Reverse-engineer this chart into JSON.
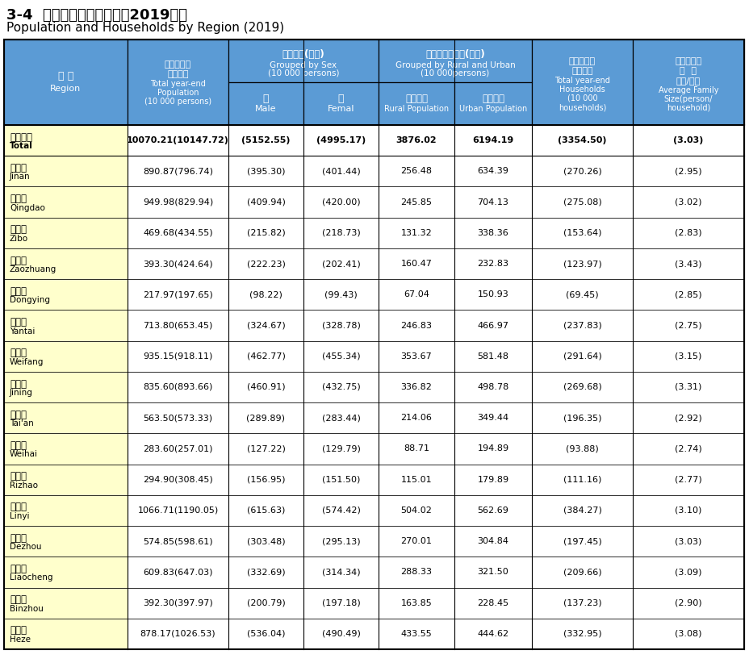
{
  "title_cn": "3-4  各市人口数和总户数（2019年）",
  "title_en": "Population and Households by Region (2019)",
  "header_bg": "#5B9BD5",
  "header_text_color": "#FFFFFF",
  "first_col_bg": "#FFFFCC",
  "data_bg": "#FFFFFF",
  "border_color": "#000000",
  "rows": [
    {
      "cn": "全省总计",
      "en": "Total",
      "total": "10070.21(10147.72)",
      "male": "(5152.55)",
      "female": "(4995.17)",
      "rural": "3876.02",
      "urban": "6194.19",
      "households": "(3354.50)",
      "avg": "(3.03)",
      "bold": true
    },
    {
      "cn": "济南市",
      "en": "Jinan",
      "total": "890.87(796.74)",
      "male": "(395.30)",
      "female": "(401.44)",
      "rural": "256.48",
      "urban": "634.39",
      "households": "(270.26)",
      "avg": "(2.95)",
      "bold": false
    },
    {
      "cn": "青岛市",
      "en": "Qingdao",
      "total": "949.98(829.94)",
      "male": "(409.94)",
      "female": "(420.00)",
      "rural": "245.85",
      "urban": "704.13",
      "households": "(275.08)",
      "avg": "(3.02)",
      "bold": false
    },
    {
      "cn": "淄博市",
      "en": "Zibo",
      "total": "469.68(434.55)",
      "male": "(215.82)",
      "female": "(218.73)",
      "rural": "131.32",
      "urban": "338.36",
      "households": "(153.64)",
      "avg": "(2.83)",
      "bold": false
    },
    {
      "cn": "枣庄市",
      "en": "Zaozhuang",
      "total": "393.30(424.64)",
      "male": "(222.23)",
      "female": "(202.41)",
      "rural": "160.47",
      "urban": "232.83",
      "households": "(123.97)",
      "avg": "(3.43)",
      "bold": false
    },
    {
      "cn": "东营市",
      "en": "Dongying",
      "total": "217.97(197.65)",
      "male": "(98.22)",
      "female": "(99.43)",
      "rural": "67.04",
      "urban": "150.93",
      "households": "(69.45)",
      "avg": "(2.85)",
      "bold": false
    },
    {
      "cn": "烟台市",
      "en": "Yantai",
      "total": "713.80(653.45)",
      "male": "(324.67)",
      "female": "(328.78)",
      "rural": "246.83",
      "urban": "466.97",
      "households": "(237.83)",
      "avg": "(2.75)",
      "bold": false
    },
    {
      "cn": "潍坊市",
      "en": "Weifang",
      "total": "935.15(918.11)",
      "male": "(462.77)",
      "female": "(455.34)",
      "rural": "353.67",
      "urban": "581.48",
      "households": "(291.64)",
      "avg": "(3.15)",
      "bold": false
    },
    {
      "cn": "济宁市",
      "en": "Jining",
      "total": "835.60(893.66)",
      "male": "(460.91)",
      "female": "(432.75)",
      "rural": "336.82",
      "urban": "498.78",
      "households": "(269.68)",
      "avg": "(3.31)",
      "bold": false
    },
    {
      "cn": "泰安市",
      "en": "Tai'an",
      "total": "563.50(573.33)",
      "male": "(289.89)",
      "female": "(283.44)",
      "rural": "214.06",
      "urban": "349.44",
      "households": "(196.35)",
      "avg": "(2.92)",
      "bold": false
    },
    {
      "cn": "威海市",
      "en": "Weihai",
      "total": "283.60(257.01)",
      "male": "(127.22)",
      "female": "(129.79)",
      "rural": "88.71",
      "urban": "194.89",
      "households": "(93.88)",
      "avg": "(2.74)",
      "bold": false
    },
    {
      "cn": "日照市",
      "en": "Rizhao",
      "total": "294.90(308.45)",
      "male": "(156.95)",
      "female": "(151.50)",
      "rural": "115.01",
      "urban": "179.89",
      "households": "(111.16)",
      "avg": "(2.77)",
      "bold": false
    },
    {
      "cn": "临沂市",
      "en": "Linyi",
      "total": "1066.71(1190.05)",
      "male": "(615.63)",
      "female": "(574.42)",
      "rural": "504.02",
      "urban": "562.69",
      "households": "(384.27)",
      "avg": "(3.10)",
      "bold": false
    },
    {
      "cn": "德州市",
      "en": "Dezhou",
      "total": "574.85(598.61)",
      "male": "(303.48)",
      "female": "(295.13)",
      "rural": "270.01",
      "urban": "304.84",
      "households": "(197.45)",
      "avg": "(3.03)",
      "bold": false
    },
    {
      "cn": "聊城市",
      "en": "Liaocheng",
      "total": "609.83(647.03)",
      "male": "(332.69)",
      "female": "(314.34)",
      "rural": "288.33",
      "urban": "321.50",
      "households": "(209.66)",
      "avg": "(3.09)",
      "bold": false
    },
    {
      "cn": "滨州市",
      "en": "Binzhou",
      "total": "392.30(397.97)",
      "male": "(200.79)",
      "female": "(197.18)",
      "rural": "163.85",
      "urban": "228.45",
      "households": "(137.23)",
      "avg": "(2.90)",
      "bold": false
    },
    {
      "cn": "菏泽市",
      "en": "Heze",
      "total": "878.17(1026.53)",
      "male": "(536.04)",
      "female": "(490.49)",
      "rural": "433.55",
      "urban": "444.62",
      "households": "(332.95)",
      "avg": "(3.08)",
      "bold": false
    }
  ]
}
